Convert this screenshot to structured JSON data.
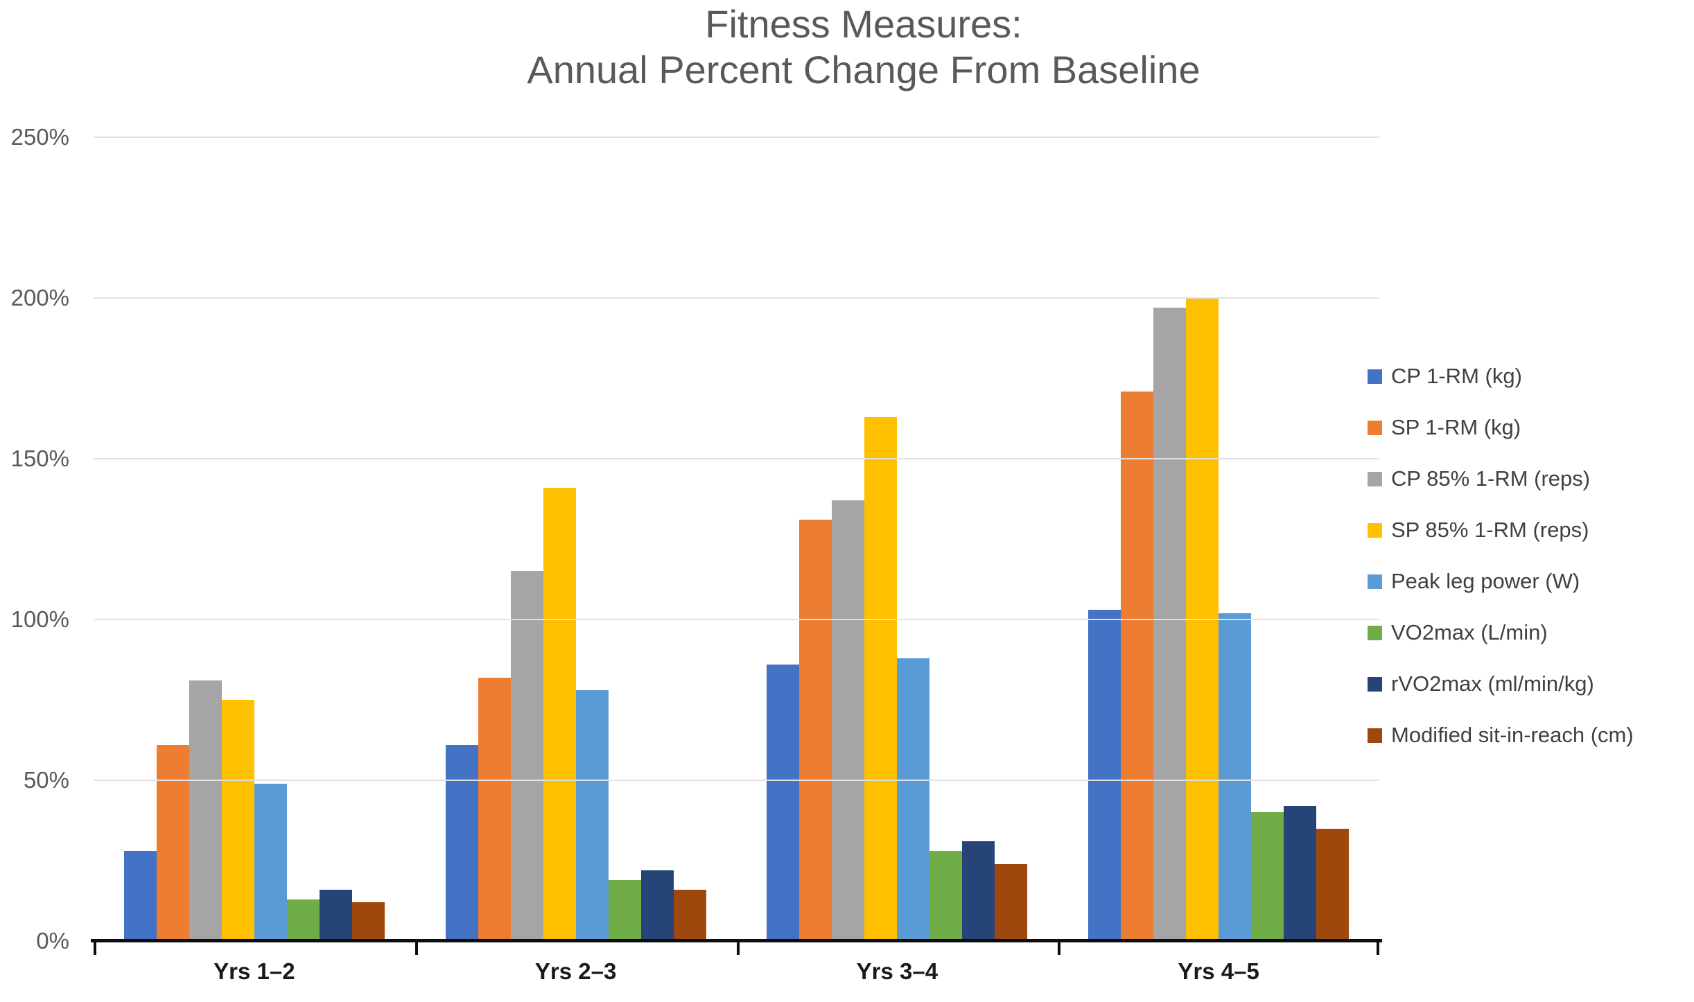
{
  "title": {
    "line1": "Fitness Measures:",
    "line2": "Annual Percent Change From Baseline"
  },
  "chart_data": {
    "type": "bar",
    "title": "Fitness Measures: Annual Percent Change From Baseline",
    "xlabel": "",
    "ylabel": "",
    "ylim": [
      0,
      250
    ],
    "y_tick_labels": [
      "0%",
      "50%",
      "100%",
      "150%",
      "200%",
      "250%"
    ],
    "y_tick_values": [
      0,
      50,
      100,
      150,
      200,
      250
    ],
    "grid": true,
    "legend_position": "right",
    "categories": [
      "Yrs 1–2",
      "Yrs 2–3",
      "Yrs 3–4",
      "Yrs 4–5"
    ],
    "series": [
      {
        "name": "CP 1-RM (kg)",
        "color": "#4472C4",
        "values": [
          28,
          61,
          86,
          103
        ]
      },
      {
        "name": "SP 1-RM (kg)",
        "color": "#ED7D31",
        "values": [
          61,
          82,
          131,
          171
        ]
      },
      {
        "name": "CP 85% 1-RM (reps)",
        "color": "#A5A5A5",
        "values": [
          81,
          115,
          137,
          197
        ]
      },
      {
        "name": "SP 85% 1-RM (reps)",
        "color": "#FFC000",
        "values": [
          75,
          141,
          163,
          200
        ]
      },
      {
        "name": "Peak leg power (W)",
        "color": "#5B9BD5",
        "values": [
          49,
          78,
          88,
          102
        ]
      },
      {
        "name": "VO2max (L/min)",
        "color": "#70AD47",
        "values": [
          13,
          19,
          28,
          40
        ]
      },
      {
        "name": "rVO2max (ml/min/kg)",
        "color": "#264478",
        "values": [
          16,
          22,
          31,
          42
        ]
      },
      {
        "name": "Modified sit-in-reach (cm)",
        "color": "#9E480E",
        "values": [
          12,
          16,
          24,
          35
        ]
      }
    ]
  }
}
